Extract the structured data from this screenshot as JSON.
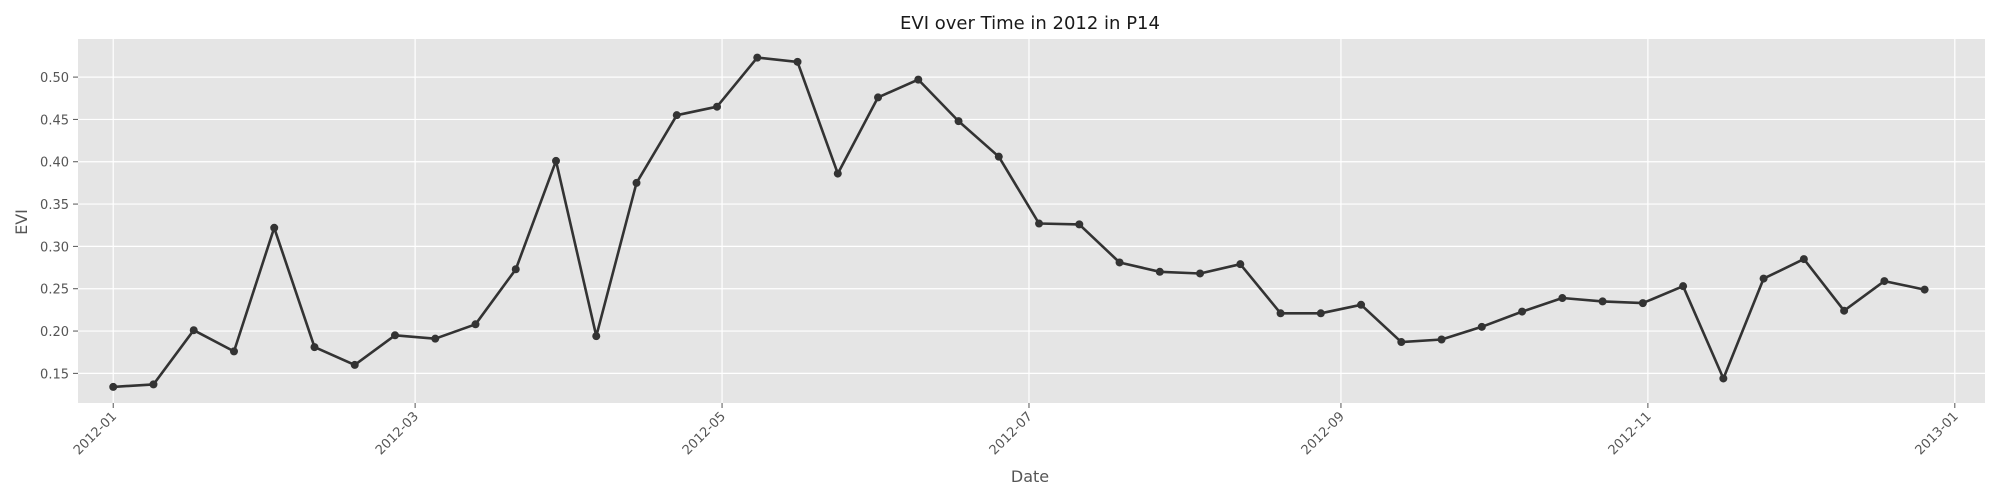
{
  "chart_data": {
    "type": "line",
    "title": "EVI over Time in 2012 in P14",
    "xlabel": "Date",
    "ylabel": "EVI",
    "xlim": [
      "2011-12-25",
      "2013-01-07"
    ],
    "ylim": [
      0.115,
      0.545
    ],
    "grid": true,
    "x_ticks": [
      "2012-01-01",
      "2012-03-01",
      "2012-05-01",
      "2012-07-01",
      "2012-09-01",
      "2012-11-01",
      "2013-01-01"
    ],
    "x_tick_labels": [
      "2012-01",
      "2012-03",
      "2012-05",
      "2012-07",
      "2012-09",
      "2012-11",
      "2013-01"
    ],
    "y_ticks": [
      0.15,
      0.2,
      0.25,
      0.3,
      0.35,
      0.4,
      0.45,
      0.5
    ],
    "y_tick_labels": [
      "0.15",
      "0.20",
      "0.25",
      "0.30",
      "0.35",
      "0.40",
      "0.45",
      "0.50"
    ],
    "series": [
      {
        "color": "#333333",
        "x": [
          "2012-01-01",
          "2012-01-09",
          "2012-01-17",
          "2012-01-25",
          "2012-02-02",
          "2012-02-10",
          "2012-02-18",
          "2012-02-26",
          "2012-03-05",
          "2012-03-13",
          "2012-03-21",
          "2012-03-29",
          "2012-04-06",
          "2012-04-14",
          "2012-04-22",
          "2012-04-30",
          "2012-05-08",
          "2012-05-16",
          "2012-05-24",
          "2012-06-01",
          "2012-06-09",
          "2012-06-17",
          "2012-06-25",
          "2012-07-03",
          "2012-07-11",
          "2012-07-19",
          "2012-07-27",
          "2012-08-04",
          "2012-08-12",
          "2012-08-20",
          "2012-08-28",
          "2012-09-05",
          "2012-09-13",
          "2012-09-21",
          "2012-09-29",
          "2012-10-07",
          "2012-10-15",
          "2012-10-23",
          "2012-10-31",
          "2012-11-08",
          "2012-11-16",
          "2012-11-24",
          "2012-12-02",
          "2012-12-10",
          "2012-12-18",
          "2012-12-26"
        ],
        "y": [
          0.134,
          0.137,
          0.201,
          0.176,
          0.322,
          0.181,
          0.16,
          0.195,
          0.191,
          0.208,
          0.273,
          0.401,
          0.194,
          0.375,
          0.455,
          0.465,
          0.523,
          0.518,
          0.386,
          0.476,
          0.497,
          0.448,
          0.406,
          0.327,
          0.326,
          0.281,
          0.27,
          0.268,
          0.279,
          0.221,
          0.221,
          0.231,
          0.187,
          0.19,
          0.205,
          0.223,
          0.239,
          0.235,
          0.233,
          0.253,
          0.144,
          0.262,
          0.285,
          0.224,
          0.259,
          0.249
        ]
      }
    ]
  }
}
